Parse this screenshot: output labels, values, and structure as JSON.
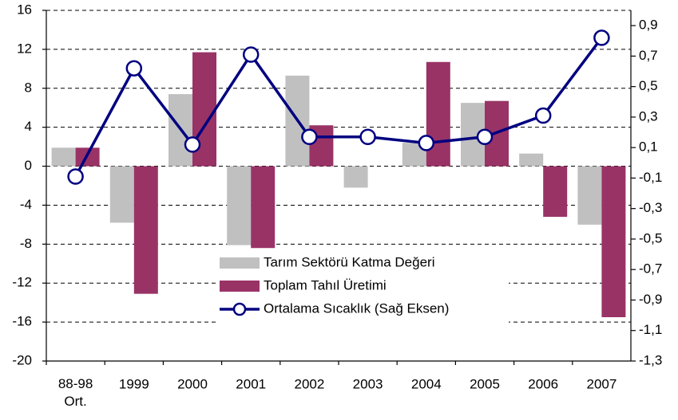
{
  "chart_data": {
    "type": "bar_line",
    "categories": [
      "88-98 Ort.",
      "1999",
      "2000",
      "2001",
      "2002",
      "2003",
      "2004",
      "2005",
      "2006",
      "2007"
    ],
    "series": [
      {
        "name": "Tarım Sektörü Katma Değeri",
        "type": "bar",
        "color": "#c0c0c0",
        "values": [
          1.9,
          -5.8,
          7.4,
          -8.1,
          9.3,
          -2.2,
          2.4,
          6.5,
          1.3,
          -6.0
        ]
      },
      {
        "name": "Toplam Tahıl Üretimi",
        "type": "bar",
        "color": "#993366",
        "values": [
          1.9,
          -13.1,
          11.7,
          -8.4,
          4.2,
          0,
          10.7,
          6.7,
          -5.2,
          -15.5
        ]
      },
      {
        "name": "Ortalama Sıcaklık (Sağ Eksen)",
        "type": "line",
        "axis": "y2",
        "color": "#000080",
        "values": [
          -0.09,
          0.62,
          0.12,
          0.71,
          0.17,
          0.17,
          0.13,
          0.17,
          0.31,
          0.82
        ]
      }
    ],
    "ylim": [
      -20,
      16
    ],
    "yticks": [
      -20,
      -16,
      -12,
      -8,
      -4,
      0,
      4,
      8,
      12,
      16
    ],
    "y2lim": [
      -1.3,
      1.0
    ],
    "y2ticks": [
      {
        "value": -1.3,
        "label": "-1,3"
      },
      {
        "value": -1.1,
        "label": "-1,1"
      },
      {
        "value": -0.9,
        "label": "-0,9"
      },
      {
        "value": -0.7,
        "label": "-0,7"
      },
      {
        "value": -0.5,
        "label": "-0,5"
      },
      {
        "value": -0.3,
        "label": "-0,3"
      },
      {
        "value": -0.1,
        "label": "-0,1"
      },
      {
        "value": 0.1,
        "label": "0,1"
      },
      {
        "value": 0.3,
        "label": "0,3"
      },
      {
        "value": 0.5,
        "label": "0,5"
      },
      {
        "value": 0.7,
        "label": "0,7"
      },
      {
        "value": 0.9,
        "label": "0,9"
      }
    ],
    "grid": true,
    "legend": "lower center"
  }
}
